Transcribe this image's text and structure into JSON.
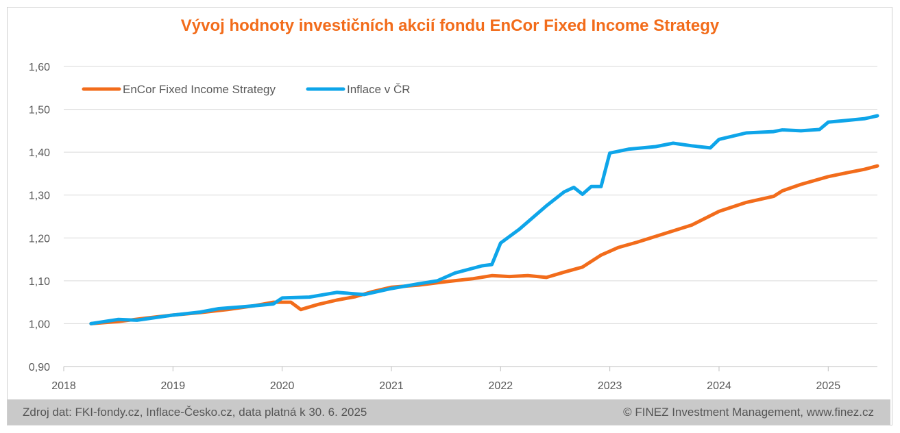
{
  "chart_data": {
    "type": "line",
    "title": "Vývoj hodnoty investičních akcií fondu EnCor Fixed Income Strategy",
    "xlabel": "",
    "ylabel": "",
    "xlim": [
      2018.0,
      2025.45
    ],
    "ylim": [
      0.9,
      1.6
    ],
    "x_ticks": [
      2018,
      2019,
      2020,
      2021,
      2022,
      2023,
      2024,
      2025
    ],
    "x_tick_labels": [
      "2018",
      "2019",
      "2020",
      "2021",
      "2022",
      "2023",
      "2024",
      "2025"
    ],
    "y_ticks": [
      0.9,
      1.0,
      1.1,
      1.2,
      1.3,
      1.4,
      1.5,
      1.6
    ],
    "y_tick_labels": [
      "0,90",
      "1,00",
      "1,10",
      "1,20",
      "1,30",
      "1,40",
      "1,50",
      "1,60"
    ],
    "grid": true,
    "legend_position": "top-left",
    "series": [
      {
        "name": "EnCor Fixed Income Strategy",
        "color": "#f26c1b",
        "points": [
          [
            2018.25,
            1.0
          ],
          [
            2018.5,
            1.005
          ],
          [
            2018.75,
            1.013
          ],
          [
            2019.0,
            1.02
          ],
          [
            2019.25,
            1.026
          ],
          [
            2019.5,
            1.033
          ],
          [
            2019.75,
            1.042
          ],
          [
            2019.92,
            1.05
          ],
          [
            2020.08,
            1.05
          ],
          [
            2020.17,
            1.033
          ],
          [
            2020.33,
            1.045
          ],
          [
            2020.5,
            1.055
          ],
          [
            2020.67,
            1.063
          ],
          [
            2020.83,
            1.075
          ],
          [
            2021.0,
            1.085
          ],
          [
            2021.25,
            1.09
          ],
          [
            2021.5,
            1.098
          ],
          [
            2021.75,
            1.105
          ],
          [
            2021.92,
            1.112
          ],
          [
            2022.08,
            1.11
          ],
          [
            2022.25,
            1.112
          ],
          [
            2022.42,
            1.108
          ],
          [
            2022.58,
            1.12
          ],
          [
            2022.75,
            1.132
          ],
          [
            2022.92,
            1.16
          ],
          [
            2023.08,
            1.178
          ],
          [
            2023.25,
            1.19
          ],
          [
            2023.5,
            1.21
          ],
          [
            2023.75,
            1.23
          ],
          [
            2024.0,
            1.262
          ],
          [
            2024.25,
            1.283
          ],
          [
            2024.5,
            1.297
          ],
          [
            2024.58,
            1.31
          ],
          [
            2024.75,
            1.325
          ],
          [
            2025.0,
            1.343
          ],
          [
            2025.17,
            1.352
          ],
          [
            2025.33,
            1.36
          ],
          [
            2025.45,
            1.368
          ]
        ]
      },
      {
        "name": "Inflace v ČR",
        "color": "#0ea5e9",
        "points": [
          [
            2018.25,
            1.0
          ],
          [
            2018.5,
            1.01
          ],
          [
            2018.67,
            1.008
          ],
          [
            2019.0,
            1.02
          ],
          [
            2019.25,
            1.027
          ],
          [
            2019.42,
            1.035
          ],
          [
            2019.67,
            1.04
          ],
          [
            2019.92,
            1.046
          ],
          [
            2020.0,
            1.06
          ],
          [
            2020.25,
            1.062
          ],
          [
            2020.5,
            1.073
          ],
          [
            2020.75,
            1.068
          ],
          [
            2021.0,
            1.082
          ],
          [
            2021.25,
            1.093
          ],
          [
            2021.42,
            1.1
          ],
          [
            2021.58,
            1.118
          ],
          [
            2021.83,
            1.135
          ],
          [
            2021.92,
            1.138
          ],
          [
            2022.0,
            1.188
          ],
          [
            2022.17,
            1.22
          ],
          [
            2022.42,
            1.275
          ],
          [
            2022.58,
            1.307
          ],
          [
            2022.67,
            1.318
          ],
          [
            2022.75,
            1.302
          ],
          [
            2022.83,
            1.32
          ],
          [
            2022.92,
            1.32
          ],
          [
            2023.0,
            1.398
          ],
          [
            2023.17,
            1.407
          ],
          [
            2023.42,
            1.413
          ],
          [
            2023.58,
            1.421
          ],
          [
            2023.75,
            1.415
          ],
          [
            2023.92,
            1.41
          ],
          [
            2024.0,
            1.43
          ],
          [
            2024.25,
            1.445
          ],
          [
            2024.5,
            1.448
          ],
          [
            2024.58,
            1.452
          ],
          [
            2024.75,
            1.45
          ],
          [
            2024.92,
            1.453
          ],
          [
            2025.0,
            1.47
          ],
          [
            2025.17,
            1.474
          ],
          [
            2025.33,
            1.478
          ],
          [
            2025.45,
            1.485
          ]
        ]
      }
    ]
  },
  "footer": {
    "source": "Zdroj dat: FKI-fondy.cz, Inflace-Česko.cz, data platná k 30. 6. 2025",
    "copyright": "© FINEZ Investment Management, www.finez.cz"
  }
}
